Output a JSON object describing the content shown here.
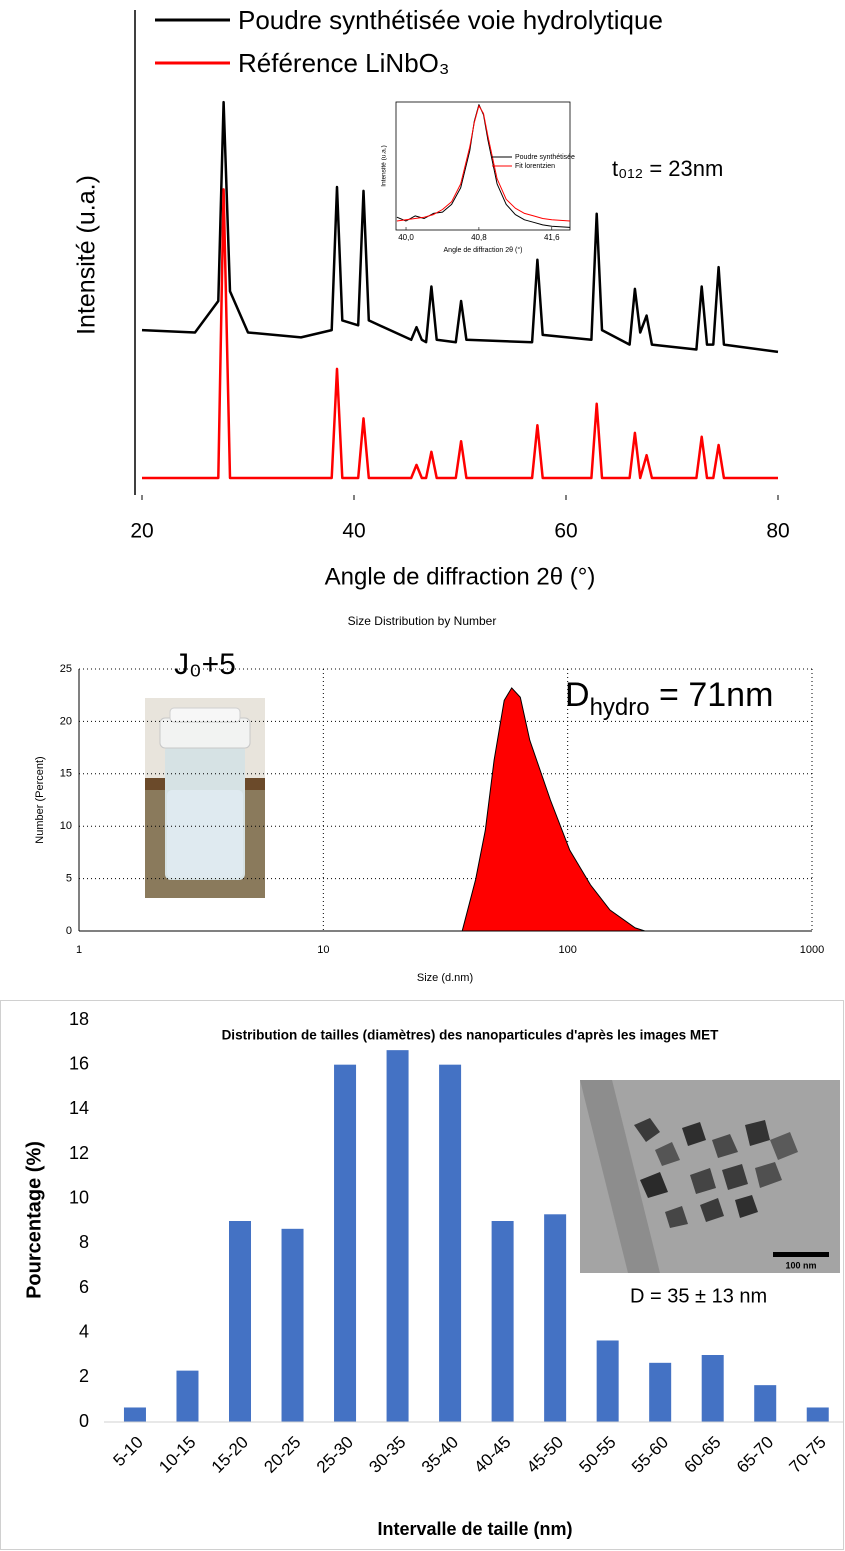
{
  "chart_data": [
    {
      "type": "line",
      "x_label": "Angle de diffraction 2θ (°)",
      "y_label": "Intensité (u.a.)",
      "annotation": "t₀₁₂ = 23nm",
      "xlim": [
        20,
        80
      ],
      "xticks": [
        20,
        40,
        60,
        80
      ],
      "ylim": [
        0,
        100
      ],
      "x": [
        20,
        25,
        27.2,
        27.7,
        28.3,
        30,
        35,
        37.9,
        38.4,
        38.9,
        40.4,
        40.9,
        41.4,
        45.4,
        45.9,
        46.4,
        46.8,
        47.3,
        47.8,
        49.6,
        50.1,
        50.6,
        56.8,
        57.3,
        57.8,
        62.4,
        62.9,
        63.4,
        66.0,
        66.5,
        67.0,
        67.6,
        68.1,
        72.3,
        72.8,
        73.3,
        73.9,
        74.4,
        74.9,
        80
      ],
      "series": [
        {
          "name": "Poudre synthétisée voie hydrolytique",
          "color": "#000000",
          "values": [
            34,
            33.5,
            40,
            81,
            42,
            33.5,
            32.5,
            34,
            63.5,
            36,
            35,
            62.7,
            36,
            32,
            34.6,
            32,
            31.5,
            43,
            32,
            31.5,
            40,
            32,
            31.5,
            48.5,
            33,
            32,
            58,
            34,
            31,
            42.5,
            33.5,
            37,
            31,
            30,
            43,
            31,
            31,
            47,
            31,
            29.5
          ]
        },
        {
          "name": "Référence LiNbO₃",
          "color": "#ff0000",
          "values": [
            3.5,
            3.5,
            3.5,
            63,
            3.5,
            3.5,
            3.5,
            3.5,
            26,
            3.5,
            3.5,
            15.8,
            3.5,
            3.5,
            6.2,
            3.5,
            3.5,
            8.9,
            3.5,
            3.5,
            11.1,
            3.5,
            3.5,
            14.4,
            3.5,
            3.5,
            18.8,
            3.5,
            3.5,
            12.8,
            3.5,
            8.2,
            3.5,
            3.5,
            12,
            3.5,
            3.5,
            10.3,
            3.5,
            3.5
          ]
        }
      ]
    },
    {
      "type": "line",
      "x_label": "Angle de diffraction 2θ (°)",
      "y_label": "Intensité (u.a.)",
      "xlim": [
        39.89,
        41.8
      ],
      "xticks": [
        {
          "value": 40.0,
          "label": "40,0"
        },
        {
          "value": 40.8,
          "label": "40,8"
        },
        {
          "value": 41.6,
          "label": "41,6"
        }
      ],
      "ylim": [
        0,
        1
      ],
      "x": [
        39.9,
        40.0,
        40.1,
        40.2,
        40.3,
        40.4,
        40.5,
        40.6,
        40.7,
        40.75,
        40.8,
        40.85,
        40.9,
        41.0,
        41.1,
        41.2,
        41.3,
        41.4,
        41.5,
        41.6,
        41.8
      ],
      "series": [
        {
          "name": "Poudre synthétisée",
          "color": "#000000",
          "values": [
            0.1,
            0.07,
            0.11,
            0.09,
            0.13,
            0.14,
            0.2,
            0.33,
            0.62,
            0.85,
            0.98,
            0.9,
            0.7,
            0.36,
            0.2,
            0.12,
            0.08,
            0.06,
            0.04,
            0.03,
            0.02
          ]
        },
        {
          "name": "Fit lorentzien",
          "color": "#ff0000",
          "values": [
            0.07,
            0.08,
            0.09,
            0.1,
            0.12,
            0.16,
            0.22,
            0.36,
            0.65,
            0.84,
            0.97,
            0.91,
            0.73,
            0.4,
            0.24,
            0.17,
            0.13,
            0.11,
            0.09,
            0.08,
            0.07
          ]
        }
      ]
    },
    {
      "type": "area",
      "title": "Size Distribution by Number",
      "x_label": "Size (d.nm)",
      "y_label": "Number (Percent)",
      "x_scale": "log",
      "grid": true,
      "xlim": [
        1,
        1000
      ],
      "xticks": [
        1,
        10,
        100,
        1000
      ],
      "ylim": [
        0,
        25
      ],
      "yticks": [
        0,
        5,
        10,
        15,
        20,
        25
      ],
      "x": [
        37,
        42,
        46,
        50,
        55,
        59,
        64,
        70,
        85,
        102,
        124,
        149,
        189,
        207
      ],
      "values": [
        0,
        4.9,
        9.6,
        16.3,
        22,
        23.2,
        22.3,
        18.2,
        12.5,
        7.7,
        4.4,
        2,
        0.3,
        0
      ],
      "color": "#ff0000",
      "photo_label": "J₀+5",
      "annotation": {
        "text": "D",
        "subscript": "hydro",
        "suffix": " = 71nm"
      }
    },
    {
      "type": "bar",
      "title": "Distribution de tailles (diamètres) des nanoparticules d'après les images MET",
      "x_label": "Intervalle de taille (nm)",
      "y_label": "Pourcentage (%)",
      "categories": [
        "5-10",
        "10-15",
        "15-20",
        "20-25",
        "25-30",
        "30-35",
        "35-40",
        "40-45",
        "45-50",
        "50-55",
        "55-60",
        "60-65",
        "65-70",
        "70-75"
      ],
      "values": [
        0.65,
        2.3,
        9,
        8.65,
        16,
        16.65,
        16,
        9,
        9.3,
        3.65,
        2.65,
        3,
        1.65,
        0.65
      ],
      "color": "#4472c4",
      "ylim": [
        0,
        18
      ],
      "yticks": [
        0,
        2,
        4,
        6,
        8,
        10,
        12,
        14,
        16,
        18
      ],
      "annotation": "D = 35 ± 13 nm",
      "scale_bar_label": "100 nm"
    }
  ]
}
